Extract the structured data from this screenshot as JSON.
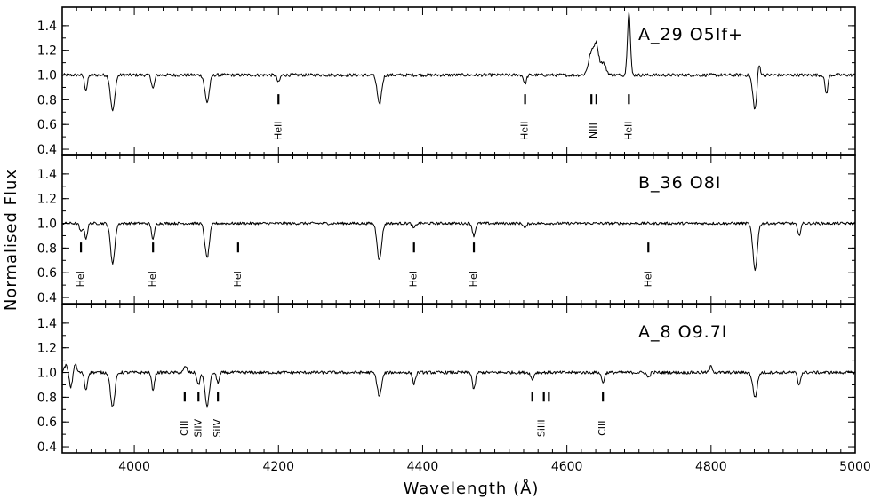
{
  "chart_data": {
    "type": "line",
    "xlabel": "Wavelength (Å)",
    "ylabel": "Normalised Flux",
    "xlim": [
      3900,
      5000
    ],
    "ylim": [
      0.35,
      1.55
    ],
    "x_ticks": [
      4000,
      4200,
      4400,
      4600,
      4800,
      5000
    ],
    "y_ticks": [
      0.4,
      0.6,
      0.8,
      1.0,
      1.2,
      1.4
    ],
    "x_tick_labels": [
      "4000",
      "4200",
      "4400",
      "4600",
      "4800",
      "5000"
    ],
    "y_tick_labels": [
      "0.4",
      "0.6",
      "0.8",
      "1.0",
      "1.2",
      "1.4"
    ],
    "panels": [
      {
        "label": "A_29  O5If+",
        "noise": 0.013,
        "features": [
          {
            "w": 3933,
            "d": -0.12,
            "s": 2
          },
          {
            "w": 3970,
            "d": -0.29,
            "s": 3
          },
          {
            "w": 4026,
            "d": -0.11,
            "s": 2
          },
          {
            "w": 4101,
            "d": -0.22,
            "s": 3
          },
          {
            "w": 4200,
            "d": -0.06,
            "s": 2
          },
          {
            "w": 4340,
            "d": -0.24,
            "s": 3
          },
          {
            "w": 4542,
            "d": -0.07,
            "s": 2
          },
          {
            "w": 4634,
            "d": 0.18,
            "s": 4
          },
          {
            "w": 4641,
            "d": 0.22,
            "s": 3
          },
          {
            "w": 4650,
            "d": 0.1,
            "s": 4
          },
          {
            "w": 4686,
            "d": 0.52,
            "s": 2
          },
          {
            "w": 4861,
            "d": -0.28,
            "s": 3
          },
          {
            "w": 4866,
            "d": 0.13,
            "s": 2
          },
          {
            "w": 4960,
            "d": -0.15,
            "s": 2
          }
        ],
        "line_ids": [
          {
            "label": "HeII",
            "w": [
              4200
            ]
          },
          {
            "label": "HeII",
            "w": [
              4542
            ]
          },
          {
            "label": "NIII",
            "w": [
              4634,
              4641
            ]
          },
          {
            "label": "HeII",
            "w": [
              4686
            ]
          }
        ]
      },
      {
        "label": "B_36  O8I",
        "noise": 0.011,
        "features": [
          {
            "w": 3926,
            "d": -0.07,
            "s": 2
          },
          {
            "w": 3933,
            "d": -0.12,
            "s": 2
          },
          {
            "w": 3970,
            "d": -0.32,
            "s": 3
          },
          {
            "w": 4026,
            "d": -0.13,
            "s": 2
          },
          {
            "w": 4101,
            "d": -0.28,
            "s": 3
          },
          {
            "w": 4340,
            "d": -0.3,
            "s": 3
          },
          {
            "w": 4388,
            "d": -0.04,
            "s": 2
          },
          {
            "w": 4471,
            "d": -0.1,
            "s": 2
          },
          {
            "w": 4542,
            "d": -0.04,
            "s": 2
          },
          {
            "w": 4861,
            "d": -0.38,
            "s": 3
          },
          {
            "w": 4922,
            "d": -0.1,
            "s": 2
          }
        ],
        "line_ids": [
          {
            "label": "HeI",
            "w": [
              3926
            ]
          },
          {
            "label": "HeI",
            "w": [
              4026
            ]
          },
          {
            "label": "HeI",
            "w": [
              4144
            ]
          },
          {
            "label": "HeI",
            "w": [
              4388
            ]
          },
          {
            "label": "HeI",
            "w": [
              4471
            ]
          },
          {
            "label": "HeI",
            "w": [
              4713
            ]
          }
        ]
      },
      {
        "label": "A_8  O9.7I",
        "noise": 0.012,
        "features": [
          {
            "w": 3905,
            "d": 0.06,
            "s": 2
          },
          {
            "w": 3912,
            "d": -0.12,
            "s": 2
          },
          {
            "w": 3918,
            "d": 0.07,
            "s": 2
          },
          {
            "w": 3933,
            "d": -0.14,
            "s": 2
          },
          {
            "w": 3970,
            "d": -0.28,
            "s": 3
          },
          {
            "w": 4026,
            "d": -0.14,
            "s": 2
          },
          {
            "w": 4071,
            "d": 0.05,
            "s": 2
          },
          {
            "w": 4089,
            "d": -0.1,
            "s": 2
          },
          {
            "w": 4101,
            "d": -0.27,
            "s": 3
          },
          {
            "w": 4116,
            "d": -0.08,
            "s": 2
          },
          {
            "w": 4340,
            "d": -0.19,
            "s": 3
          },
          {
            "w": 4388,
            "d": -0.09,
            "s": 2
          },
          {
            "w": 4471,
            "d": -0.14,
            "s": 2
          },
          {
            "w": 4552,
            "d": -0.06,
            "s": 2
          },
          {
            "w": 4650,
            "d": -0.08,
            "s": 2
          },
          {
            "w": 4713,
            "d": -0.04,
            "s": 2
          },
          {
            "w": 4800,
            "d": 0.05,
            "s": 2
          },
          {
            "w": 4861,
            "d": -0.2,
            "s": 3
          },
          {
            "w": 4922,
            "d": -0.1,
            "s": 2
          }
        ],
        "line_ids": [
          {
            "label": "CIII",
            "w": [
              4070
            ]
          },
          {
            "label": "SiIV",
            "w": [
              4089
            ]
          },
          {
            "label": "SiIV",
            "w": [
              4116
            ]
          },
          {
            "label": "SiIII",
            "w": [
              4552,
              4568,
              4575
            ]
          },
          {
            "label": "CIII",
            "w": [
              4650
            ]
          }
        ]
      }
    ]
  }
}
